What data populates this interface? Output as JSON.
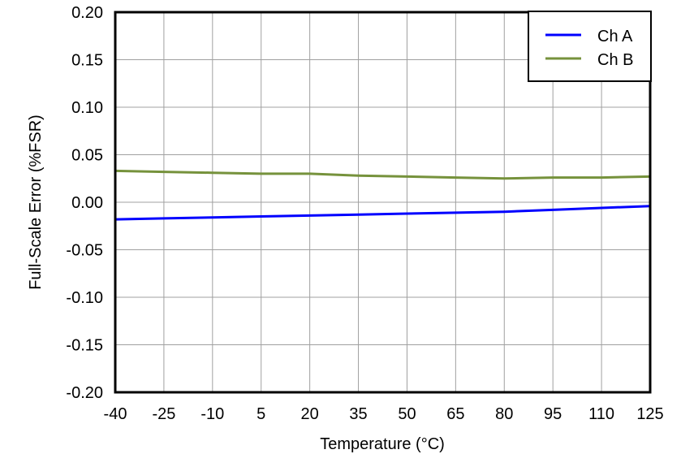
{
  "chart_data": {
    "type": "line",
    "title": "",
    "xlabel": "Temperature (°C)",
    "ylabel": "Full-Scale Error (%FSR)",
    "xlim": [
      -40,
      125
    ],
    "ylim": [
      -0.2,
      0.2
    ],
    "x_ticks": [
      "-40",
      "-25",
      "-10",
      "5",
      "20",
      "35",
      "50",
      "65",
      "80",
      "95",
      "110",
      "125"
    ],
    "y_ticks": [
      "0.20",
      "0.15",
      "0.10",
      "0.05",
      "0.00",
      "-0.05",
      "-0.10",
      "-0.15",
      "-0.20"
    ],
    "grid": true,
    "legend_position": "top-right",
    "x": [
      -40,
      -25,
      -10,
      5,
      20,
      35,
      50,
      65,
      80,
      95,
      110,
      125
    ],
    "series": [
      {
        "name": "Ch A",
        "color": "#0000ff",
        "values": [
          -0.018,
          -0.017,
          -0.016,
          -0.015,
          -0.014,
          -0.013,
          -0.012,
          -0.011,
          -0.01,
          -0.008,
          -0.006,
          -0.004
        ]
      },
      {
        "name": "Ch B",
        "color": "#76923c",
        "values": [
          0.033,
          0.032,
          0.031,
          0.03,
          0.03,
          0.028,
          0.027,
          0.026,
          0.025,
          0.026,
          0.026,
          0.027
        ]
      }
    ]
  },
  "legend": {
    "items": [
      {
        "label": "Ch A",
        "color": "#0000ff"
      },
      {
        "label": "Ch B",
        "color": "#76923c"
      }
    ]
  }
}
